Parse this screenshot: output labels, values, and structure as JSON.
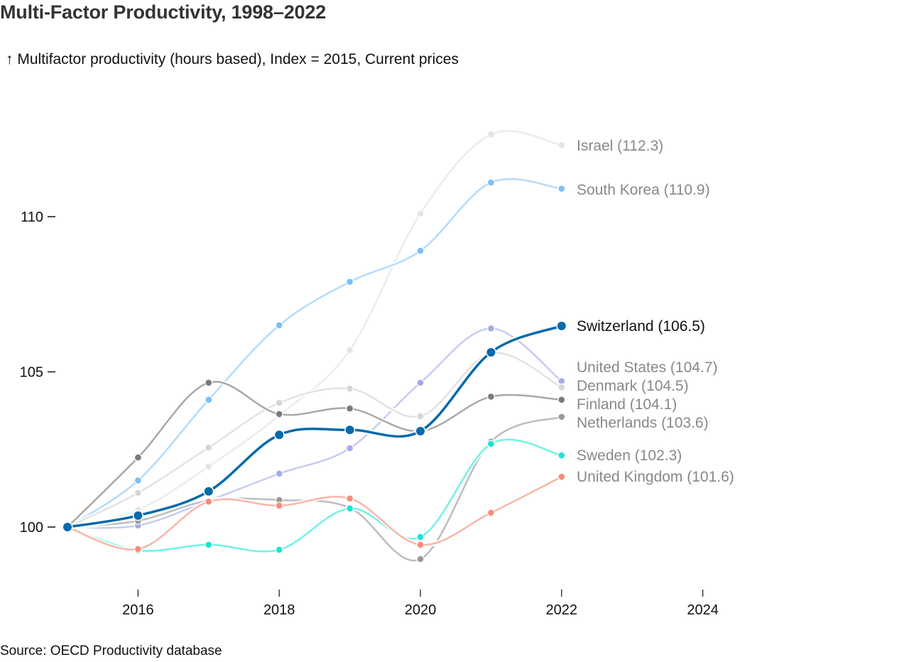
{
  "header": {
    "title": "Multi-Factor Productivity, 1998–2022",
    "subtitle": "↑ Multifactor productivity (hours based), Index = 2015, Current prices"
  },
  "footer": {
    "source": "Source: OECD Productivity database"
  },
  "chart_data": {
    "type": "line",
    "title": "Multi-Factor Productivity, 1998–2022",
    "ylabel": "↑ Multifactor productivity (hours based), Index = 2015, Current prices",
    "xlabel": "",
    "x": [
      2015,
      2016,
      2017,
      2018,
      2019,
      2020,
      2021,
      2022
    ],
    "xlim": [
      2015,
      2024
    ],
    "ylim": [
      98.3,
      113.5
    ],
    "x_ticks": [
      2016,
      2018,
      2020,
      2022,
      2024
    ],
    "y_ticks": [
      100,
      105,
      110
    ],
    "grid": false,
    "legend": "direct-labels-right",
    "highlighted": "Switzerland",
    "series": [
      {
        "name": "Israel",
        "label": "Israel (112.3)",
        "color": "#ececec",
        "dot": "#e4e4e4",
        "values": [
          100,
          100.55,
          101.95,
          103.6,
          105.7,
          110.1,
          112.65,
          112.3
        ]
      },
      {
        "name": "South Korea",
        "label": "South Korea (110.9)",
        "color": "#b3dbfb",
        "dot": "#7ebff6",
        "values": [
          100,
          101.5,
          104.1,
          106.5,
          107.9,
          108.9,
          111.1,
          110.9
        ]
      },
      {
        "name": "United States",
        "label": "United States (104.7)",
        "color": "#c6ccf2",
        "dot": "#a3ace9",
        "values": [
          100,
          100.05,
          100.85,
          101.72,
          102.54,
          104.65,
          106.4,
          104.7
        ]
      },
      {
        "name": "Denmark",
        "label": "Denmark (104.5)",
        "color": "#e2e2e2",
        "dot": "#d6d6d6",
        "values": [
          100,
          101.1,
          102.56,
          104.0,
          104.46,
          103.57,
          105.6,
          104.5
        ]
      },
      {
        "name": "Finland",
        "label": "Finland (104.1)",
        "color": "#a8a8a8",
        "dot": "#7a7a7a",
        "values": [
          100,
          102.24,
          104.65,
          103.64,
          103.82,
          103.09,
          104.2,
          104.1
        ]
      },
      {
        "name": "Netherlands",
        "label": "Netherlands (103.6)",
        "color": "#bdbdbd",
        "dot": "#999999",
        "values": [
          100,
          100.2,
          100.85,
          100.87,
          100.62,
          98.97,
          102.75,
          103.55
        ]
      },
      {
        "name": "Sweden",
        "label": "Sweden (102.3)",
        "color": "#6ff3e4",
        "dot": "#1de3d1",
        "values": [
          100,
          99.25,
          99.43,
          99.27,
          100.6,
          99.68,
          102.68,
          102.31
        ]
      },
      {
        "name": "United Kingdom",
        "label": "United Kingdom (101.6)",
        "color": "#f9b5aa",
        "dot": "#f78c7b",
        "values": [
          100,
          99.29,
          100.82,
          100.69,
          100.92,
          99.43,
          100.46,
          101.62
        ]
      },
      {
        "name": "Switzerland",
        "label": "Switzerland (106.5)",
        "color": "#076aab",
        "dot": "#076aab",
        "values": [
          100,
          100.37,
          101.15,
          102.97,
          103.13,
          103.09,
          105.63,
          106.48
        ]
      }
    ],
    "label_colors": {
      "muted": "#888888",
      "highlight": "#111111"
    }
  }
}
